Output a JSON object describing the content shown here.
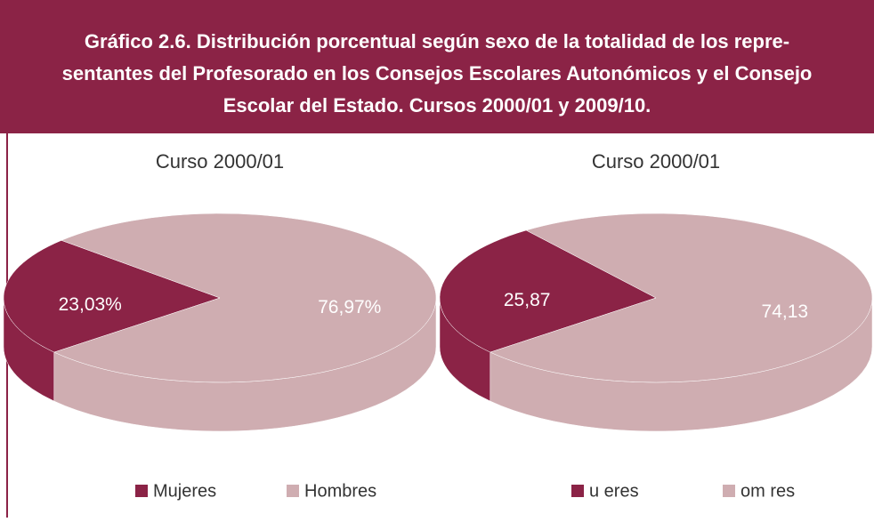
{
  "title_lines": [
    "Gráfico 2.6. Distribución porcentual según sexo de la totalidad de los repre-",
    "sentantes del Profesorado en los Consejos Escolares Autonómicos y el Consejo",
    "Escolar del Estado. Cursos 2000/01 y 2009/10."
  ],
  "chart_data": [
    {
      "type": "pie",
      "title": "Curso 2000/01",
      "categories": [
        "Mujeres",
        "Hombres"
      ],
      "values": [
        23.03,
        76.97
      ],
      "value_labels": [
        "23,03%",
        "76,97%"
      ],
      "colors": [
        "#8b2346",
        "#cfadb1"
      ],
      "legend": "bottom"
    },
    {
      "type": "pie",
      "title": "Curso 2000/01",
      "categories": [
        "u eres",
        "om res"
      ],
      "values": [
        25.87,
        74.13
      ],
      "value_labels": [
        "25,87",
        "74,13"
      ],
      "colors": [
        "#8b2346",
        "#cfadb1"
      ],
      "legend": "bottom"
    }
  ]
}
